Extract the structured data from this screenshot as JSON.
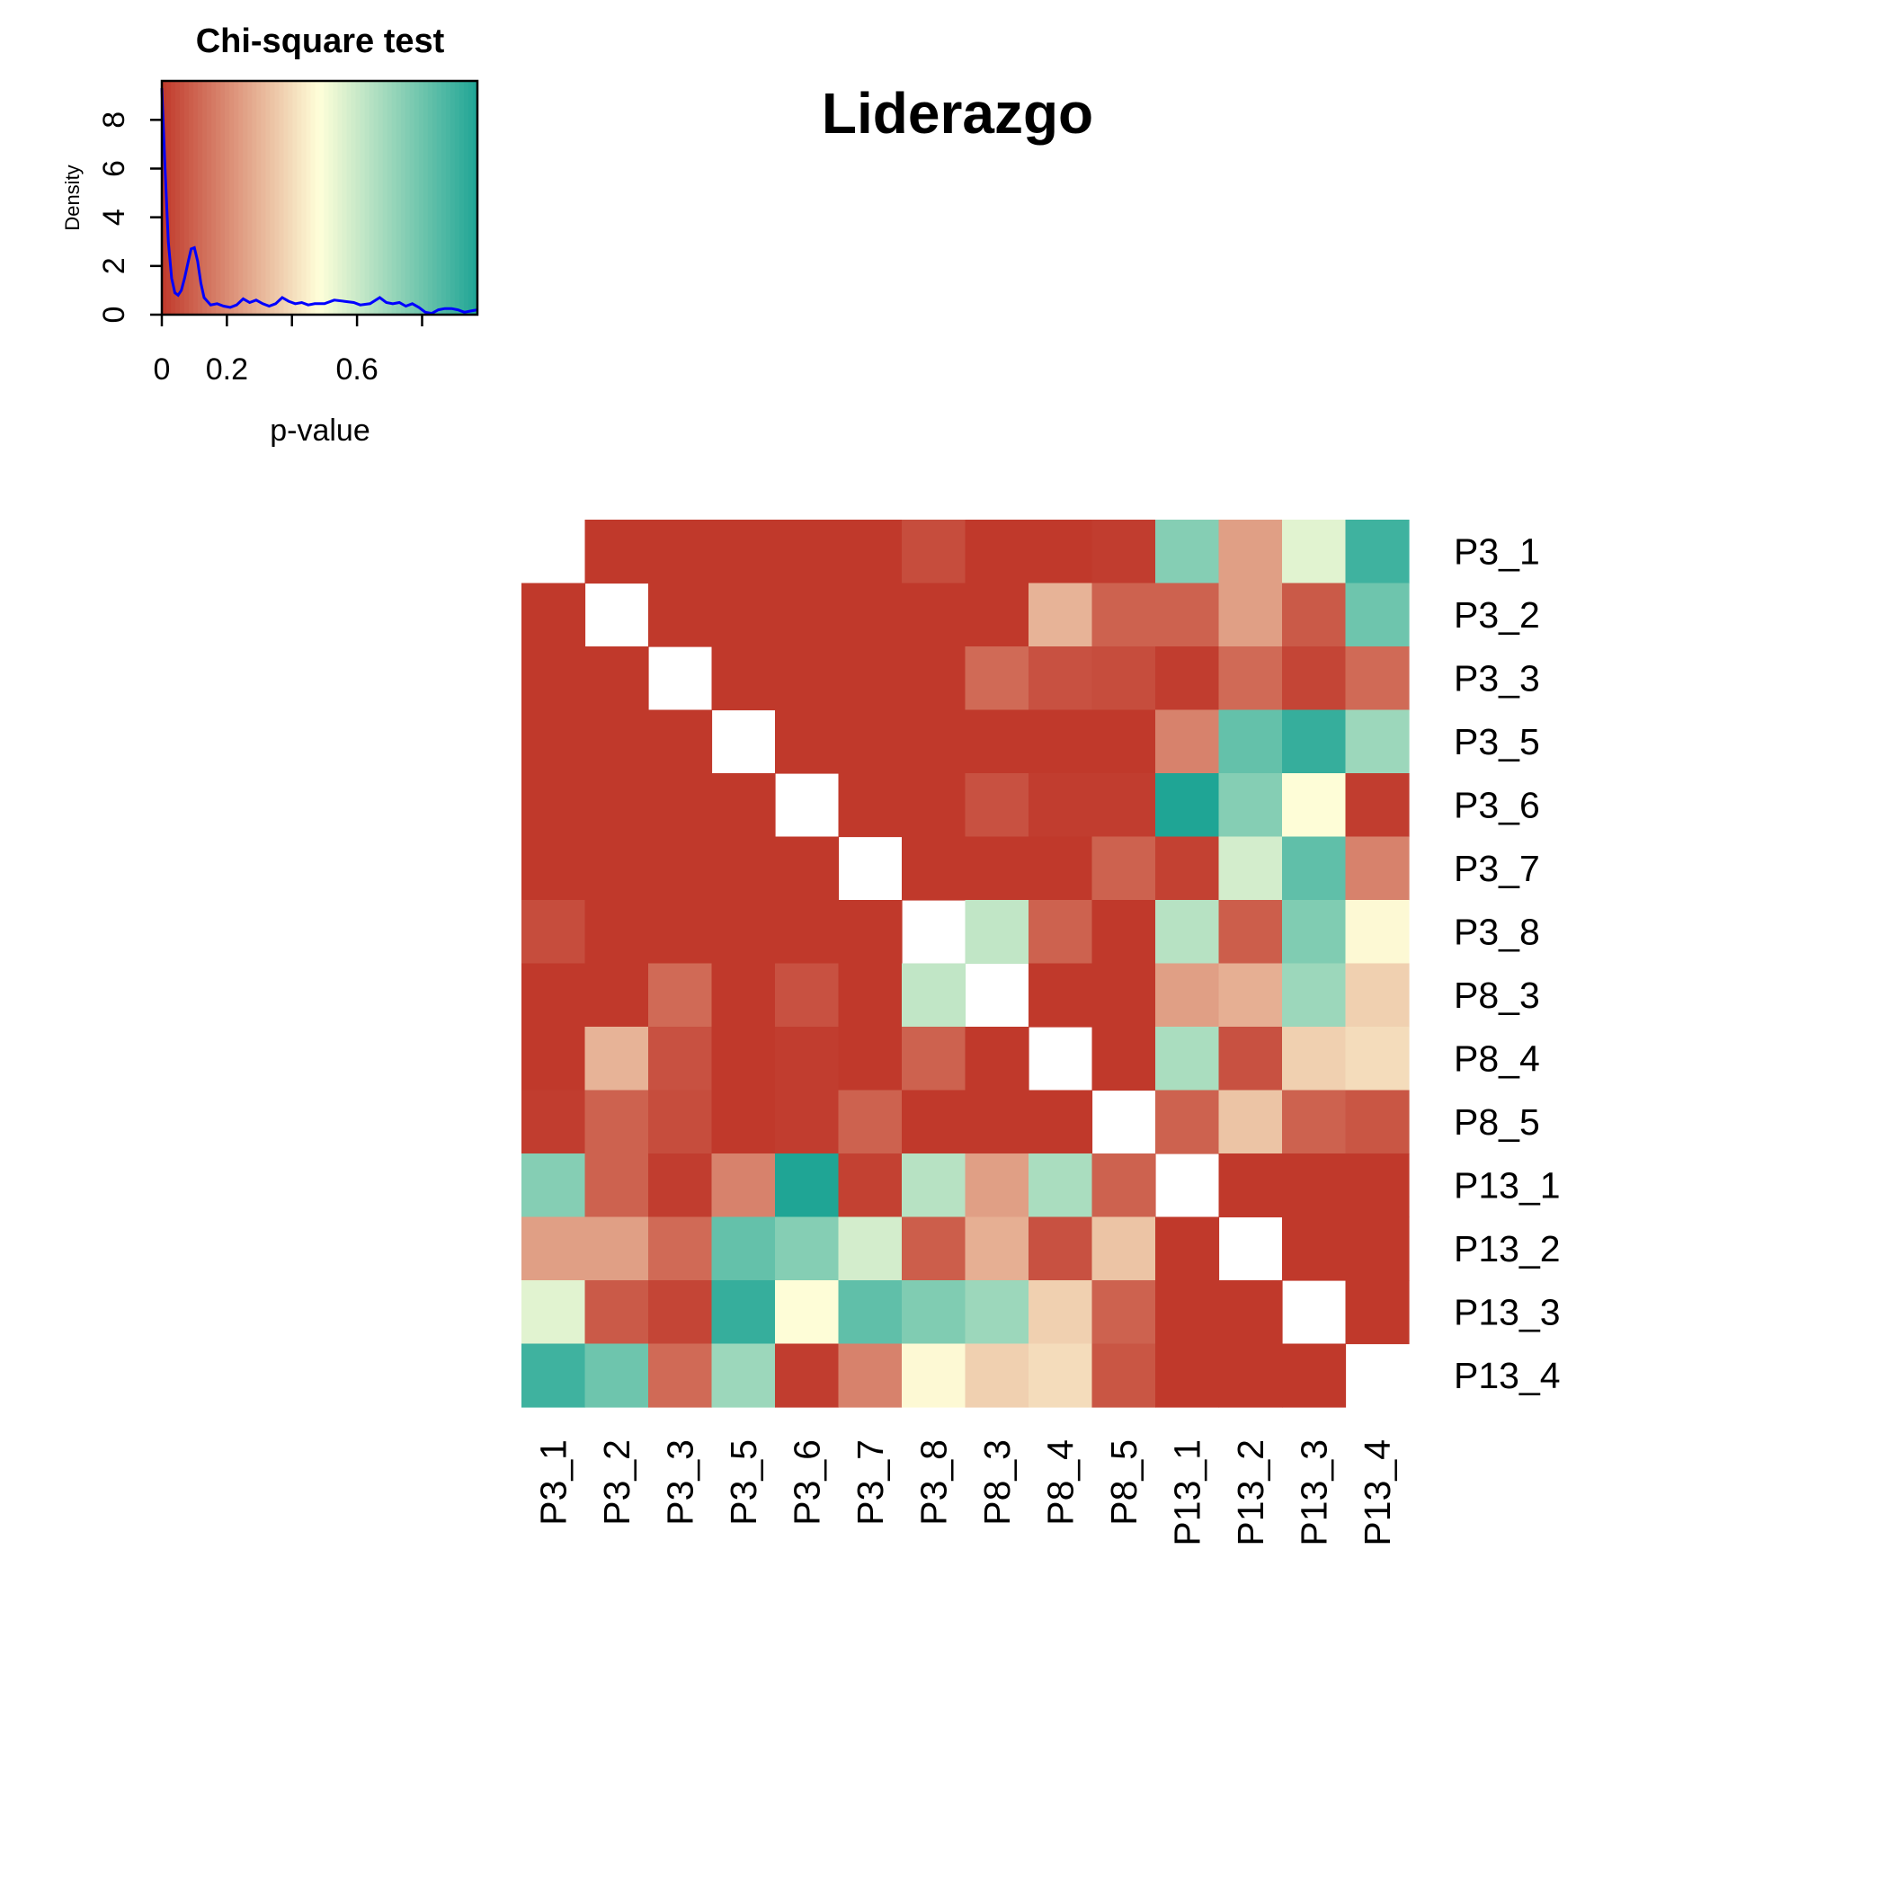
{
  "chart_data": [
    {
      "type": "heatmap",
      "title": "Liderazgo",
      "row_labels": [
        "P3_1",
        "P3_2",
        "P3_3",
        "P3_5",
        "P3_6",
        "P3_7",
        "P3_8",
        "P8_3",
        "P8_4",
        "P8_5",
        "P13_1",
        "P13_2",
        "P13_3",
        "P13_4"
      ],
      "col_labels": [
        "P3_1",
        "P3_2",
        "P3_3",
        "P3_5",
        "P3_6",
        "P3_7",
        "P3_8",
        "P8_3",
        "P8_4",
        "P8_5",
        "P13_1",
        "P13_2",
        "P13_3",
        "P13_4"
      ],
      "value_range": [
        0,
        0.97
      ],
      "values": [
        [
          null,
          0.0,
          0.0,
          0.0,
          0.0,
          0.0,
          0.05,
          0.0,
          0.0,
          0.01,
          0.75,
          0.25,
          0.55,
          0.9
        ],
        [
          0.0,
          null,
          0.0,
          0.0,
          0.0,
          0.0,
          0.0,
          0.0,
          0.3,
          0.1,
          0.1,
          0.25,
          0.08,
          0.8
        ],
        [
          0.0,
          0.0,
          null,
          0.0,
          0.0,
          0.0,
          0.0,
          0.12,
          0.06,
          0.05,
          0.01,
          0.12,
          0.03,
          0.12
        ],
        [
          0.0,
          0.0,
          0.0,
          null,
          0.0,
          0.0,
          0.0,
          0.0,
          0.0,
          0.0,
          0.18,
          0.82,
          0.92,
          0.7
        ],
        [
          0.0,
          0.0,
          0.0,
          0.0,
          null,
          0.0,
          0.0,
          0.06,
          0.01,
          0.01,
          0.97,
          0.75,
          0.48,
          0.01
        ],
        [
          0.0,
          0.0,
          0.0,
          0.0,
          0.0,
          null,
          0.0,
          0.0,
          0.0,
          0.1,
          0.02,
          0.58,
          0.83,
          0.18
        ],
        [
          0.05,
          0.0,
          0.0,
          0.0,
          0.0,
          0.0,
          null,
          0.62,
          0.1,
          0.0,
          0.64,
          0.09,
          0.76,
          0.47
        ],
        [
          0.0,
          0.0,
          0.12,
          0.0,
          0.06,
          0.0,
          0.62,
          null,
          0.0,
          0.0,
          0.25,
          0.29,
          0.7,
          0.37
        ],
        [
          0.0,
          0.3,
          0.06,
          0.0,
          0.01,
          0.0,
          0.1,
          0.0,
          null,
          0.0,
          0.67,
          0.06,
          0.37,
          0.4
        ],
        [
          0.01,
          0.1,
          0.05,
          0.0,
          0.01,
          0.1,
          0.0,
          0.0,
          0.0,
          null,
          0.1,
          0.34,
          0.1,
          0.07
        ],
        [
          0.75,
          0.1,
          0.01,
          0.18,
          0.97,
          0.02,
          0.64,
          0.25,
          0.67,
          0.1,
          null,
          0.0,
          0.0,
          0.0
        ],
        [
          0.25,
          0.25,
          0.12,
          0.82,
          0.75,
          0.58,
          0.09,
          0.29,
          0.06,
          0.34,
          0.0,
          null,
          0.0,
          0.0
        ],
        [
          0.55,
          0.08,
          0.03,
          0.92,
          0.48,
          0.83,
          0.76,
          0.7,
          0.37,
          0.1,
          0.0,
          0.0,
          null,
          0.0
        ],
        [
          0.9,
          0.8,
          0.12,
          0.7,
          0.01,
          0.18,
          0.47,
          0.37,
          0.4,
          0.07,
          0.0,
          0.0,
          0.0,
          null
        ]
      ],
      "color_low": "#c0392b",
      "color_mid": "#ffffd9",
      "color_high": "#1fa595"
    },
    {
      "type": "line",
      "title": "Chi-square test",
      "xlabel": "p-value",
      "ylabel": "Density",
      "x_ticks": [
        "0",
        "0.2",
        "0.6"
      ],
      "x_tick_values": [
        0,
        0.2,
        0.6
      ],
      "x_minor_tick_values": [
        0.4,
        0.8
      ],
      "y_ticks": [
        "0",
        "2",
        "4",
        "6",
        "8"
      ],
      "y_tick_values": [
        0,
        2,
        4,
        6,
        8
      ],
      "xlim": [
        0,
        0.97
      ],
      "ylim": [
        0,
        9.6
      ],
      "line_color": "#0000ff",
      "x": [
        0,
        0.01,
        0.02,
        0.03,
        0.04,
        0.05,
        0.06,
        0.07,
        0.08,
        0.09,
        0.1,
        0.11,
        0.12,
        0.13,
        0.15,
        0.17,
        0.19,
        0.21,
        0.23,
        0.25,
        0.27,
        0.29,
        0.31,
        0.33,
        0.35,
        0.37,
        0.39,
        0.41,
        0.43,
        0.45,
        0.47,
        0.5,
        0.53,
        0.56,
        0.59,
        0.61,
        0.64,
        0.67,
        0.69,
        0.71,
        0.73,
        0.75,
        0.77,
        0.79,
        0.81,
        0.83,
        0.85,
        0.87,
        0.89,
        0.91,
        0.93,
        0.95,
        0.97
      ],
      "y": [
        9.3,
        6.0,
        3.0,
        1.5,
        0.9,
        0.8,
        1.0,
        1.5,
        2.1,
        2.7,
        2.75,
        2.2,
        1.3,
        0.7,
        0.4,
        0.45,
        0.35,
        0.3,
        0.4,
        0.65,
        0.5,
        0.6,
        0.45,
        0.35,
        0.45,
        0.7,
        0.55,
        0.45,
        0.5,
        0.4,
        0.45,
        0.45,
        0.6,
        0.55,
        0.5,
        0.4,
        0.45,
        0.7,
        0.5,
        0.45,
        0.5,
        0.35,
        0.45,
        0.3,
        0.1,
        0.05,
        0.2,
        0.25,
        0.25,
        0.2,
        0.1,
        0.15,
        0.2
      ]
    }
  ]
}
